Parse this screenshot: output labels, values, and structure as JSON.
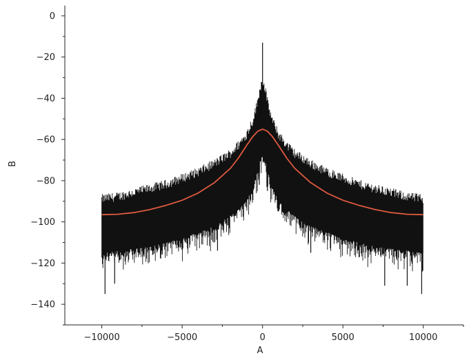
{
  "chart_data": {
    "type": "line",
    "title": "",
    "xlabel": "A",
    "ylabel": "B",
    "xlim": [
      -12300,
      12500
    ],
    "ylim": [
      -150,
      5
    ],
    "xticks": [
      -10000,
      -5000,
      0,
      5000,
      10000
    ],
    "xtick_labels": [
      "−10000",
      "−5000",
      "0",
      "5000",
      "10000"
    ],
    "yticks": [
      0,
      -20,
      -40,
      -60,
      -80,
      -100,
      -120,
      -140
    ],
    "ytick_labels": [
      "0",
      "−20",
      "−40",
      "−60",
      "−80",
      "−100",
      "−120",
      "−140"
    ],
    "grid": false,
    "legend": "none",
    "series": [
      {
        "style": "noisy-band",
        "color": "#111111",
        "x": [
          -10000,
          -9000,
          -8000,
          -7000,
          -6000,
          -5000,
          -4000,
          -3000,
          -2000,
          -1500,
          -1000,
          -600,
          -300,
          -150,
          0,
          150,
          300,
          600,
          1000,
          1500,
          2000,
          3000,
          4000,
          5000,
          6000,
          7000,
          8000,
          9000,
          10000
        ],
        "upper": [
          -91,
          -90,
          -88,
          -86,
          -84,
          -81,
          -78,
          -74,
          -69,
          -65,
          -60,
          -53,
          -44,
          -37,
          -34,
          -37,
          -44,
          -53,
          -60,
          -65,
          -69,
          -74,
          -78,
          -81,
          -84,
          -86,
          -88,
          -90,
          -91
        ],
        "lower": [
          -115,
          -114,
          -113,
          -112,
          -110,
          -108,
          -105,
          -102,
          -97,
          -94,
          -90,
          -83,
          -75,
          -70,
          -68,
          -70,
          -75,
          -83,
          -90,
          -94,
          -97,
          -102,
          -105,
          -108,
          -110,
          -112,
          -113,
          -114,
          -115
        ],
        "spikes": [
          {
            "x": 0,
            "y": -13
          },
          {
            "x": -9800,
            "y": -135
          },
          {
            "x": 9900,
            "y": -135
          },
          {
            "x": -9200,
            "y": -130
          },
          {
            "x": 7600,
            "y": -131
          },
          {
            "x": 9000,
            "y": -131
          },
          {
            "x": -2800,
            "y": -114
          },
          {
            "x": 3000,
            "y": -115
          },
          {
            "x": -200,
            "y": -82
          },
          {
            "x": 300,
            "y": -85
          }
        ]
      },
      {
        "style": "line",
        "color": "#e05a40",
        "x": [
          -10000,
          -9000,
          -8000,
          -7000,
          -6000,
          -5000,
          -4000,
          -3000,
          -2000,
          -1500,
          -1000,
          -600,
          -300,
          0,
          300,
          600,
          1000,
          1500,
          2000,
          3000,
          4000,
          5000,
          6000,
          7000,
          8000,
          9000,
          10000
        ],
        "y": [
          -96.5,
          -96.3,
          -95.5,
          -94,
          -92,
          -89.5,
          -86,
          -81,
          -74,
          -69,
          -63,
          -58.5,
          -56,
          -55,
          -56,
          -58.5,
          -63,
          -69,
          -74,
          -81,
          -86,
          -89.5,
          -92,
          -94,
          -95.5,
          -96.3,
          -96.5
        ]
      }
    ]
  }
}
